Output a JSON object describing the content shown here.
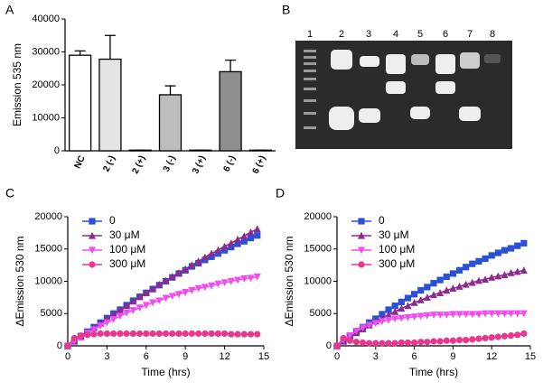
{
  "chart_data": [
    {
      "type": "bar",
      "panel": "A",
      "ylabel": "Emission 535 nm",
      "categories": [
        "NC",
        "2 (-)",
        "2 (+)",
        "3 (-)",
        "3 (+)",
        "6 (-)",
        "6 (+)"
      ],
      "values": [
        29000,
        27800,
        200,
        17000,
        200,
        24000,
        200
      ],
      "errors": [
        1300,
        7200,
        0,
        2700,
        0,
        3500,
        0
      ],
      "colors": [
        "#ffffff",
        "#e4e4e4",
        "#e4e4e4",
        "#bdbdbd",
        "#bdbdbd",
        "#8e8e8e",
        "#8e8e8e"
      ],
      "ylim": [
        0,
        40000
      ],
      "yticks": [
        0,
        10000,
        20000,
        30000,
        40000
      ]
    },
    {
      "type": "line",
      "panel": "C",
      "xlabel": "Time (hrs)",
      "ylabel": "ΔEmission 530 nm",
      "legend": "upper left",
      "x": [
        0,
        0.5,
        1,
        1.5,
        2,
        2.5,
        3,
        3.5,
        4,
        4.5,
        5,
        5.5,
        6,
        6.5,
        7,
        7.5,
        8,
        8.5,
        9,
        9.5,
        10,
        10.5,
        11,
        11.5,
        12,
        12.5,
        13,
        13.5,
        14,
        14.5
      ],
      "xlim": [
        0,
        15
      ],
      "xticks": [
        0,
        3,
        6,
        9,
        12,
        15
      ],
      "ylim": [
        0,
        20000
      ],
      "yticks": [
        0,
        5000,
        10000,
        15000,
        20000
      ],
      "series": [
        {
          "name": "0",
          "color": "#2b50d8",
          "marker": "square",
          "values": [
            0,
            700,
            1500,
            2200,
            2900,
            3600,
            4300,
            5000,
            5600,
            6300,
            7000,
            7600,
            8200,
            8800,
            9400,
            10000,
            10600,
            11200,
            11700,
            12300,
            12800,
            13300,
            13800,
            14300,
            14800,
            15300,
            15800,
            16200,
            16700,
            17100
          ]
        },
        {
          "name": "30 μM",
          "color": "#8e2a8e",
          "marker": "triangle",
          "values": [
            0,
            700,
            1400,
            2100,
            2800,
            3500,
            4200,
            4900,
            5600,
            6200,
            6900,
            7600,
            8200,
            8800,
            9500,
            10100,
            10700,
            11300,
            11900,
            12500,
            13100,
            13700,
            14300,
            14800,
            15400,
            15900,
            16500,
            17000,
            17600,
            18100
          ]
        },
        {
          "name": "100 μM",
          "color": "#f04cf0",
          "marker": "triangle-down",
          "values": [
            0,
            700,
            1300,
            2000,
            2500,
            3100,
            3600,
            4100,
            4600,
            5100,
            5500,
            5900,
            6300,
            6700,
            7000,
            7400,
            7700,
            8000,
            8300,
            8600,
            8900,
            9100,
            9300,
            9600,
            9800,
            10000,
            10200,
            10400,
            10500,
            10700
          ]
        },
        {
          "name": "300 μM",
          "color": "#e8378e",
          "marker": "circle",
          "values": [
            0,
            1200,
            1600,
            1700,
            1800,
            1900,
            1900,
            1900,
            1900,
            1900,
            1900,
            1900,
            1900,
            1900,
            1900,
            1900,
            1900,
            1900,
            1900,
            1900,
            1900,
            1900,
            1900,
            1900,
            1900,
            1800,
            1800,
            1800,
            1800,
            1800
          ]
        }
      ]
    },
    {
      "type": "line",
      "panel": "D",
      "xlabel": "Time (hrs)",
      "ylabel": "ΔEmission 530 nm",
      "legend": "upper left",
      "x": [
        0,
        0.5,
        1,
        1.5,
        2,
        2.5,
        3,
        3.5,
        4,
        4.5,
        5,
        5.5,
        6,
        6.5,
        7,
        7.5,
        8,
        8.5,
        9,
        9.5,
        10,
        10.5,
        11,
        11.5,
        12,
        12.5,
        13,
        13.5,
        14,
        14.5
      ],
      "xlim": [
        0,
        15
      ],
      "xticks": [
        0,
        3,
        6,
        9,
        12,
        15
      ],
      "ylim": [
        0,
        20000
      ],
      "yticks": [
        0,
        5000,
        10000,
        15000,
        20000
      ],
      "series": [
        {
          "name": "0",
          "color": "#2b50d8",
          "marker": "square",
          "values": [
            0,
            700,
            1500,
            2200,
            2900,
            3600,
            4200,
            4900,
            5600,
            6200,
            6800,
            7400,
            8000,
            8600,
            9100,
            9700,
            10200,
            10700,
            11200,
            11700,
            12200,
            12700,
            13100,
            13500,
            14000,
            14400,
            14800,
            15100,
            15500,
            15900
          ]
        },
        {
          "name": "30 μM",
          "color": "#8e2a8e",
          "marker": "triangle",
          "values": [
            0,
            700,
            1400,
            2000,
            2600,
            3200,
            3800,
            4300,
            4800,
            5300,
            5800,
            6200,
            6700,
            7100,
            7500,
            7900,
            8200,
            8600,
            8900,
            9200,
            9500,
            9800,
            10100,
            10300,
            10600,
            10800,
            11000,
            11300,
            11500,
            11700
          ]
        },
        {
          "name": "100 μM",
          "color": "#f04cf0",
          "marker": "triangle-down",
          "values": [
            0,
            900,
            1600,
            2300,
            2800,
            3200,
            3500,
            3800,
            4000,
            4200,
            4300,
            4400,
            4500,
            4600,
            4700,
            4800,
            4800,
            4800,
            4900,
            4900,
            4900,
            4900,
            4900,
            5000,
            5000,
            5000,
            5000,
            5000,
            5000,
            5000
          ]
        },
        {
          "name": "300 μM",
          "color": "#e8378e",
          "marker": "circle",
          "values": [
            0,
            1200,
            800,
            600,
            500,
            400,
            400,
            400,
            400,
            400,
            500,
            500,
            500,
            600,
            600,
            700,
            700,
            800,
            800,
            900,
            900,
            1000,
            1100,
            1200,
            1300,
            1400,
            1500,
            1600,
            1700,
            1900
          ]
        }
      ]
    }
  ],
  "gel": {
    "panel": "B",
    "lanes": [
      "1",
      "2",
      "3",
      "4",
      "5",
      "6",
      "7",
      "8"
    ]
  }
}
